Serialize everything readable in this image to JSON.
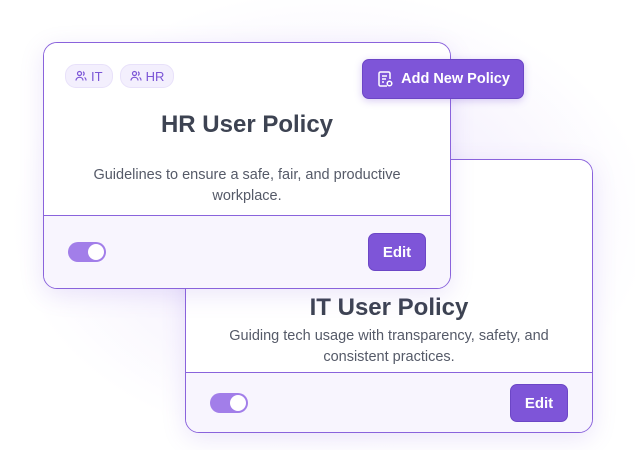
{
  "colors": {
    "accent": "#7e55d8",
    "border": "#8a63dc",
    "toggle_on": "#a27ee9"
  },
  "add_policy_button": {
    "label": "Add New Policy",
    "icon": "document-shield-icon"
  },
  "cards": [
    {
      "tags": [
        {
          "label": "IT",
          "icon": "users-icon"
        },
        {
          "label": "HR",
          "icon": "users-icon"
        }
      ],
      "title": "HR User Policy",
      "description": "Guidelines to ensure a safe, fair, and productive workplace.",
      "enabled": true,
      "edit_label": "Edit"
    },
    {
      "title": "IT User Policy",
      "description": "Guiding tech usage with transparency, safety, and consistent practices.",
      "enabled": true,
      "edit_label": "Edit"
    }
  ]
}
